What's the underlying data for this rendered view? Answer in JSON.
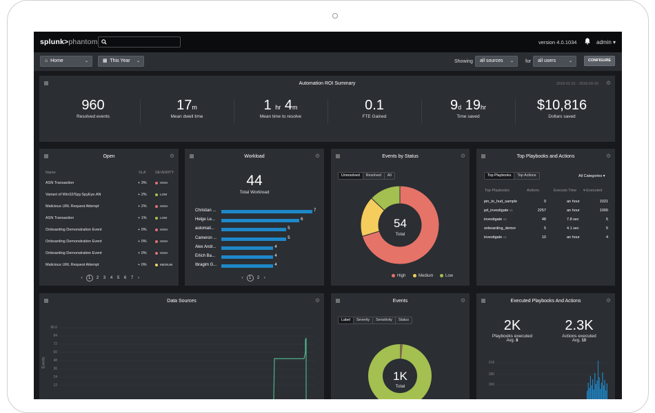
{
  "topbar": {
    "logo_brand": "splunk>",
    "logo_product": "phantom",
    "version": "version 4.0.1034",
    "user": "admin",
    "user_caret": "▾"
  },
  "subbar": {
    "home": "Home",
    "range": "This Year",
    "showing_label": "Showing",
    "sources_value": "all sources",
    "for_label": "for",
    "users_value": "all users",
    "configure": "CONFIGURE",
    "caret": "⌄"
  },
  "roi": {
    "title": "Automation ROI Summary",
    "date_range": "2018-01-01 - 2018-09-26",
    "stats": [
      {
        "value": "960",
        "unit": "",
        "label": "Resolved events"
      },
      {
        "value": "17",
        "unit": "m",
        "label": "Mean dwell time"
      },
      {
        "value": "1",
        "unit": "hr",
        "value2": "4",
        "unit2": "m",
        "label": "Mean time to resolve"
      },
      {
        "value": "0.1",
        "unit": "",
        "label": "FTE Gained"
      },
      {
        "value": "9",
        "unit": "d",
        "value2": "19",
        "unit2": "hr",
        "label": "Time saved"
      },
      {
        "value": "$10,816",
        "unit": "",
        "label": "Dollars saved"
      }
    ]
  },
  "open": {
    "title": "Open",
    "headers": {
      "name": "Name",
      "sla": "SLA",
      "severity": "SEVERITY"
    },
    "rows": [
      {
        "name": "ASN Transaction",
        "sla": "+ 3%",
        "severity": "HIGH",
        "color": "#e57373"
      },
      {
        "name": "Variant of Win32/Spy.SpyEye.AN",
        "sla": "+ 2%",
        "severity": "LOW",
        "color": "#a5c64e"
      },
      {
        "name": "Malicious URL Request Attempt",
        "sla": "+ 2%",
        "severity": "HIGH",
        "color": "#e57373"
      },
      {
        "name": "ASN Transaction",
        "sla": "+ 1%",
        "severity": "LOW",
        "color": "#a5c64e"
      },
      {
        "name": "Onboarding Demonstration Event",
        "sla": "+ 0%",
        "severity": "HIGH",
        "color": "#e57373"
      },
      {
        "name": "Onboarding Demonstration Event",
        "sla": "+ 0%",
        "severity": "HIGH",
        "color": "#e57373"
      },
      {
        "name": "Onboarding Demonstration Event",
        "sla": "+ 0%",
        "severity": "HIGH",
        "color": "#e57373"
      },
      {
        "name": "Malicious URL Request Attempt",
        "sla": "+ 0%",
        "severity": "MEDIUM",
        "color": "#f5d76e"
      }
    ],
    "pages": [
      "1",
      "2",
      "3",
      "4",
      "5",
      "6",
      "7"
    ]
  },
  "workload": {
    "title": "Workload",
    "total": "44",
    "total_label": "Total Workload",
    "pages": [
      "1",
      "2"
    ],
    "rows": [
      {
        "name": "Christian ...",
        "value": 7
      },
      {
        "name": "Helge Le...",
        "value": 6
      },
      {
        "name": "automati...",
        "value": 5
      },
      {
        "name": "Cameron ...",
        "value": 5
      },
      {
        "name": "Alex Andr...",
        "value": 4
      },
      {
        "name": "Erlich Ba...",
        "value": 4
      },
      {
        "name": "Ibragim G...",
        "value": 4
      }
    ]
  },
  "status": {
    "title": "Events by Status",
    "tabs": [
      "Unresolved",
      "Resolved",
      "All"
    ],
    "total": "54",
    "total_label": "Total",
    "legend": [
      {
        "label": "High",
        "color": "#e57368",
        "value": 38
      },
      {
        "label": "Medium",
        "color": "#f5cd5c",
        "value": 9
      },
      {
        "label": "Low",
        "color": "#a3c050",
        "value": 7
      }
    ]
  },
  "playbooks": {
    "title": "Top Playbooks and Actions",
    "tabs": [
      "Top Playbooks",
      "Top Actions"
    ],
    "categories": "All Categories",
    "headers": {
      "name": "Top Playbooks",
      "actions": "Actions",
      "exec_time": "Execute Time",
      "executed": "Executed"
    },
    "rows": [
      {
        "name": "pin_to_hud_sample",
        "ver": "",
        "actions": "0",
        "time": "an hour",
        "executed": "1021"
      },
      {
        "name": "pd_investigate",
        "ver": "v1",
        "actions": "2257",
        "time": "an hour",
        "executed": "1000"
      },
      {
        "name": "investigate",
        "ver": "v2",
        "actions": "48",
        "time": "7.8 sec",
        "executed": "5"
      },
      {
        "name": "onboarding_demor",
        "ver": "",
        "actions": "5",
        "time": "4.1 sec",
        "executed": "5"
      },
      {
        "name": "investigate",
        "ver": "v1",
        "actions": "10",
        "time": "an hour",
        "executed": "4"
      }
    ]
  },
  "datasources": {
    "title": "Data Sources",
    "y_label": "Events",
    "y_ticks": [
      "96.6",
      "84",
      "72",
      "60",
      "48",
      "36",
      "24",
      "12"
    ]
  },
  "events": {
    "title": "Events",
    "tabs": [
      "Label",
      "Severity",
      "Sensitivity",
      "Status"
    ],
    "total": "1K",
    "total_label": "Total"
  },
  "executed": {
    "title": "Executed Playbooks And Actions",
    "stats": [
      {
        "value": "2K",
        "label": "Playbooks executed",
        "avg_label": "Avg.",
        "avg": "8"
      },
      {
        "value": "2.3K",
        "label": "Actions executed",
        "avg_label": "Avg.",
        "avg": "10"
      }
    ],
    "y_ticks": [
      "218",
      "180",
      "160"
    ]
  },
  "chart_data": [
    {
      "type": "bar",
      "categories": [
        "Christian ...",
        "Helge Le...",
        "automati...",
        "Cameron ...",
        "Alex Andr...",
        "Erlich Ba...",
        "Ibragim G..."
      ],
      "values": [
        7,
        6,
        5,
        5,
        4,
        4,
        4
      ],
      "title": "Workload"
    },
    {
      "type": "pie",
      "labels": [
        "High",
        "Medium",
        "Low"
      ],
      "values": [
        38,
        9,
        7
      ],
      "title": "Events by Status"
    }
  ]
}
